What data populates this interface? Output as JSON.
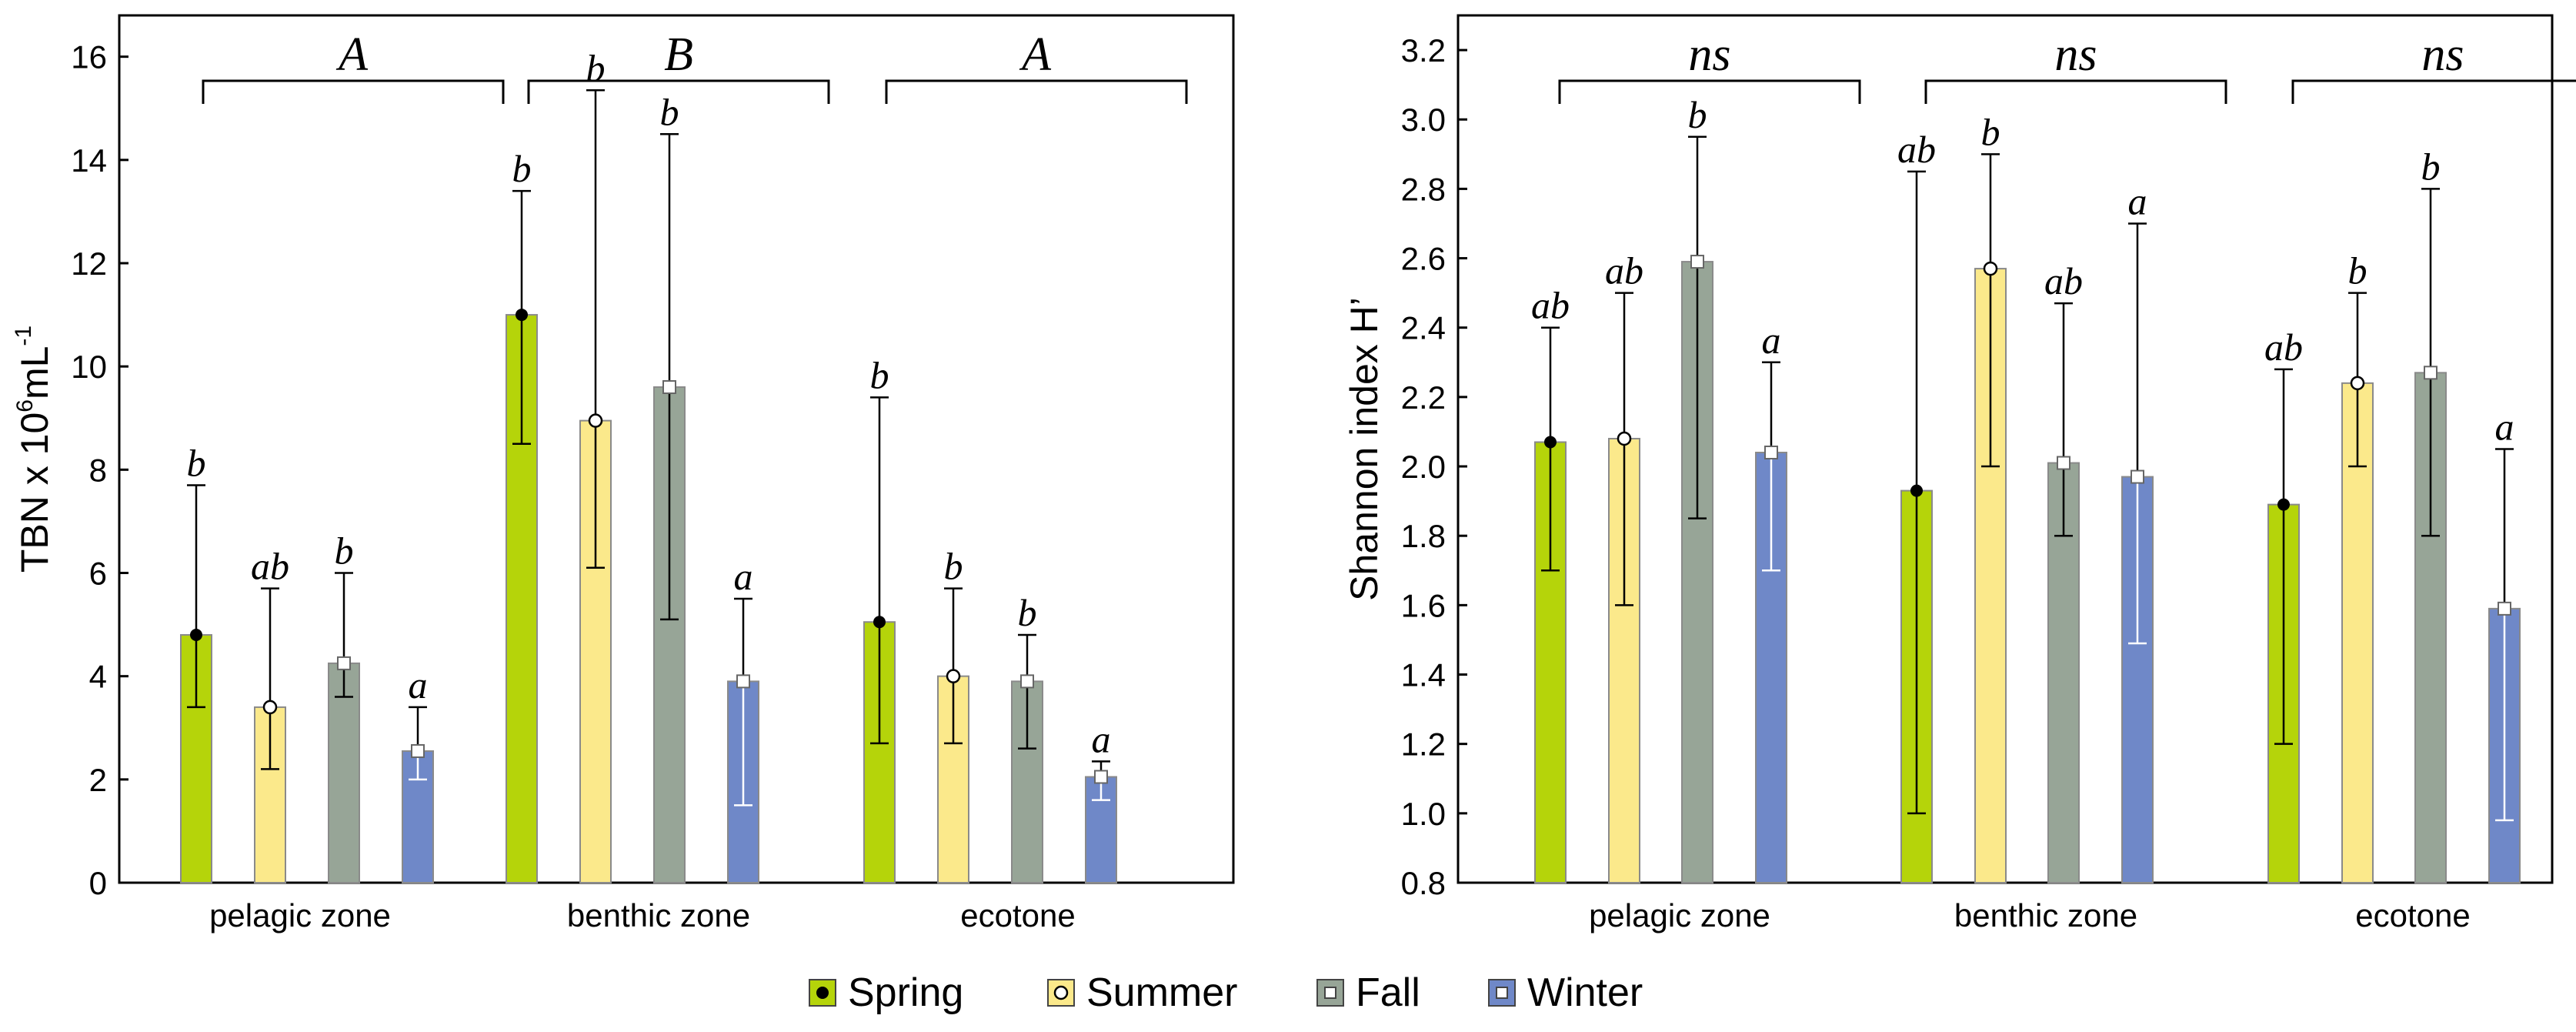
{
  "colors": {
    "Spring": "#b5d40a",
    "Summer": "#fbe98b",
    "Fall": "#97a597",
    "Winter": "#6f88c8"
  },
  "legend": {
    "items": [
      {
        "label": "Spring",
        "marker": "filled-circle"
      },
      {
        "label": "Summer",
        "marker": "open-circle"
      },
      {
        "label": "Fall",
        "marker": "square"
      },
      {
        "label": "Winter",
        "marker": "square"
      }
    ]
  },
  "chart_data": [
    {
      "type": "bar",
      "title": "",
      "ylabel": {
        "main": "TBN x 10",
        "sup1": "6",
        "mid": "mL",
        "sup2": "-1"
      },
      "ylim": [
        0,
        16.8
      ],
      "yticks": [
        0,
        2,
        4,
        6,
        8,
        10,
        12,
        14,
        16
      ],
      "ytick_decimals": 0,
      "categories": [
        "pelagic zone",
        "benthic zone",
        "ecotone"
      ],
      "seasons": [
        "Spring",
        "Summer",
        "Fall",
        "Winter"
      ],
      "group_letters": [
        "A",
        "B",
        "A"
      ],
      "series": [
        {
          "name": "Spring",
          "values": [
            4.8,
            11.0,
            5.05
          ],
          "err_low": [
            3.4,
            8.5,
            2.7
          ],
          "err_high": [
            7.7,
            13.4,
            9.4
          ],
          "letters": [
            "b",
            "b",
            "b"
          ]
        },
        {
          "name": "Summer",
          "values": [
            3.4,
            8.95,
            4.0
          ],
          "err_low": [
            2.2,
            6.1,
            2.7
          ],
          "err_high": [
            5.7,
            15.35,
            5.7
          ],
          "letters": [
            "ab",
            "b",
            "b"
          ]
        },
        {
          "name": "Fall",
          "values": [
            4.25,
            9.6,
            3.9
          ],
          "err_low": [
            3.6,
            5.1,
            2.6
          ],
          "err_high": [
            6.0,
            14.5,
            4.8
          ],
          "letters": [
            "b",
            "b",
            "b"
          ]
        },
        {
          "name": "Winter",
          "values": [
            2.55,
            3.9,
            2.05
          ],
          "err_low": [
            2.0,
            1.5,
            1.6
          ],
          "err_high": [
            3.4,
            5.5,
            2.35
          ],
          "letters": [
            "a",
            "a",
            "a"
          ]
        }
      ]
    },
    {
      "type": "bar",
      "title": "",
      "ylabel": {
        "main": "Shannon index H’"
      },
      "ylim": [
        0.8,
        3.3
      ],
      "yticks": [
        0.8,
        1.0,
        1.2,
        1.4,
        1.6,
        1.8,
        2.0,
        2.2,
        2.4,
        2.6,
        2.8,
        3.0,
        3.2
      ],
      "ytick_decimals": 1,
      "categories": [
        "pelagic zone",
        "benthic zone",
        "ecotone"
      ],
      "seasons": [
        "Spring",
        "Summer",
        "Fall",
        "Winter"
      ],
      "group_letters": [
        "ns",
        "ns",
        "ns"
      ],
      "series": [
        {
          "name": "Spring",
          "values": [
            2.07,
            1.93,
            1.89
          ],
          "err_low": [
            1.7,
            1.0,
            1.2
          ],
          "err_high": [
            2.4,
            2.85,
            2.28
          ],
          "letters": [
            "ab",
            "ab",
            "ab"
          ]
        },
        {
          "name": "Summer",
          "values": [
            2.08,
            2.57,
            2.24
          ],
          "err_low": [
            1.6,
            2.0,
            2.0
          ],
          "err_high": [
            2.5,
            2.9,
            2.5
          ],
          "letters": [
            "ab",
            "b",
            "b"
          ]
        },
        {
          "name": "Fall",
          "values": [
            2.59,
            2.01,
            2.27
          ],
          "err_low": [
            1.85,
            1.8,
            1.8
          ],
          "err_high": [
            2.95,
            2.47,
            2.8
          ],
          "letters": [
            "b",
            "ab",
            "b"
          ]
        },
        {
          "name": "Winter",
          "values": [
            2.04,
            1.97,
            1.59
          ],
          "err_low": [
            1.7,
            1.49,
            0.98
          ],
          "err_high": [
            2.3,
            2.7,
            2.05
          ],
          "letters": [
            "a",
            "a",
            "a"
          ]
        }
      ]
    }
  ]
}
